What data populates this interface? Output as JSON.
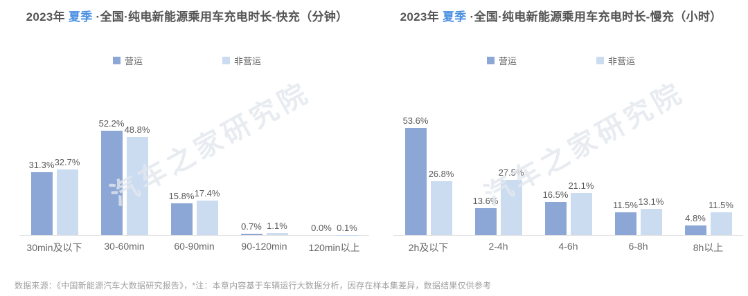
{
  "page": {
    "watermark": "汽车之家研究院",
    "footer": "数据来源：《中国新能源汽车大数据研究报告》，*注：本章内容基于车辆运行大数据分析，因存在样本集差异，数据结果仅供参考"
  },
  "colors": {
    "title_text": "#555555",
    "title_highlight": "#4A90E2",
    "operating_bar": "#8CA7D5",
    "non_operating_bar": "#CBDCF1",
    "axis_line": "#E4E4E4",
    "value_label": "#595959",
    "category_label": "#666666",
    "footer_text": "#A0A0A0"
  },
  "chart_data": [
    {
      "type": "bar",
      "title": "2023年 夏季 ·全国·纯电新能源乘用车充电时长-快充（分钟）",
      "title_segments": [
        {
          "text": "2023年 ",
          "highlight": false
        },
        {
          "text": "夏季",
          "highlight": true
        },
        {
          "text": " ·全国·纯电新能源乘用车充电时长-快充（分钟）",
          "highlight": false
        }
      ],
      "categories": [
        "30min及以下",
        "30-60min",
        "60-90min",
        "90-120min",
        "120min以上"
      ],
      "series": [
        {
          "name": "营运",
          "color": "#8CA7D5",
          "values": [
            31.3,
            52.2,
            15.8,
            0.7,
            0.0
          ]
        },
        {
          "name": "非营运",
          "color": "#CBDCF1",
          "values": [
            32.7,
            48.8,
            17.4,
            1.1,
            0.1
          ]
        }
      ],
      "value_suffix": "%",
      "xlabel": "",
      "ylabel": "",
      "ylim": [
        0,
        56
      ],
      "grid": false,
      "legend_position": "top"
    },
    {
      "type": "bar",
      "title": "2023年 夏季 ·全国·纯电新能源乘用车充电时长-慢充（小时）",
      "title_segments": [
        {
          "text": "2023年 ",
          "highlight": false
        },
        {
          "text": "夏季",
          "highlight": true
        },
        {
          "text": " ·全国·纯电新能源乘用车充电时长-慢充（小时）",
          "highlight": false
        }
      ],
      "categories": [
        "2h及以下",
        "2-4h",
        "4-6h",
        "6-8h",
        "8h以上"
      ],
      "series": [
        {
          "name": "营运",
          "color": "#8CA7D5",
          "values": [
            53.6,
            13.6,
            16.5,
            11.5,
            4.8
          ]
        },
        {
          "name": "非营运",
          "color": "#CBDCF1",
          "values": [
            26.8,
            27.5,
            21.1,
            13.1,
            11.5
          ]
        }
      ],
      "value_suffix": "%",
      "xlabel": "",
      "ylabel": "",
      "ylim": [
        0,
        56
      ],
      "grid": false,
      "legend_position": "top"
    }
  ]
}
